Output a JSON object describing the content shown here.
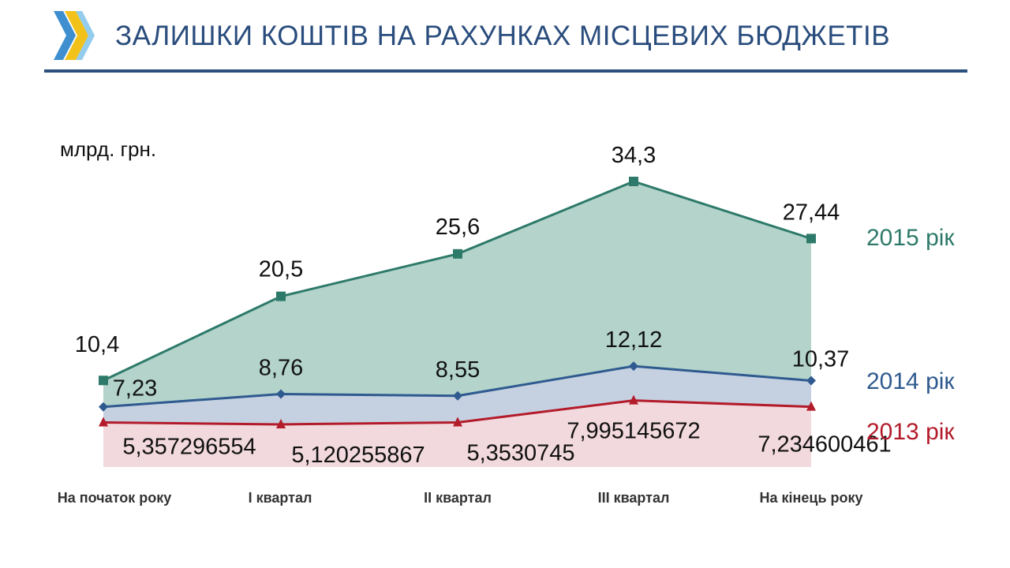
{
  "header": {
    "title": "ЗАЛИШКИ КОШТІВ НА РАХУНКАХ МІСЦЕВИХ БЮДЖЕТІВ"
  },
  "chart_data": {
    "type": "area",
    "unit_label": "млрд. грн.",
    "categories": [
      "На початок року",
      "І квартал",
      "ІІ квартал",
      "ІІІ квартал",
      "На кінець року"
    ],
    "series": [
      {
        "name": "2015 рік",
        "values": [
          10.4,
          20.5,
          25.6,
          34.3,
          27.44
        ],
        "labels": [
          "10,4",
          "20,5",
          "25,6",
          "34,3",
          "27,44"
        ],
        "line_color": "#2e7a6a",
        "fill_color": "#b3d3cb",
        "marker": "square"
      },
      {
        "name": "2014 рік",
        "values": [
          7.23,
          8.76,
          8.55,
          12.12,
          10.37
        ],
        "labels": [
          "7,23",
          "8,76",
          "8,55",
          "12,12",
          "10,37"
        ],
        "line_color": "#2f5a8f",
        "fill_color": "#c5d1e1",
        "marker": "diamond"
      },
      {
        "name": "2013 рік",
        "values": [
          5.357296554,
          5.120255867,
          5.3530745,
          7.995145672,
          7.234600461
        ],
        "labels": [
          "5,357296554",
          "5,120255867",
          "5,3530745",
          "7,995145672",
          "7,234600461"
        ],
        "line_color": "#b31b2a",
        "fill_color": "#f2d9de",
        "marker": "triangle"
      }
    ],
    "legend_placement": "right, at line ends",
    "grid": false
  }
}
